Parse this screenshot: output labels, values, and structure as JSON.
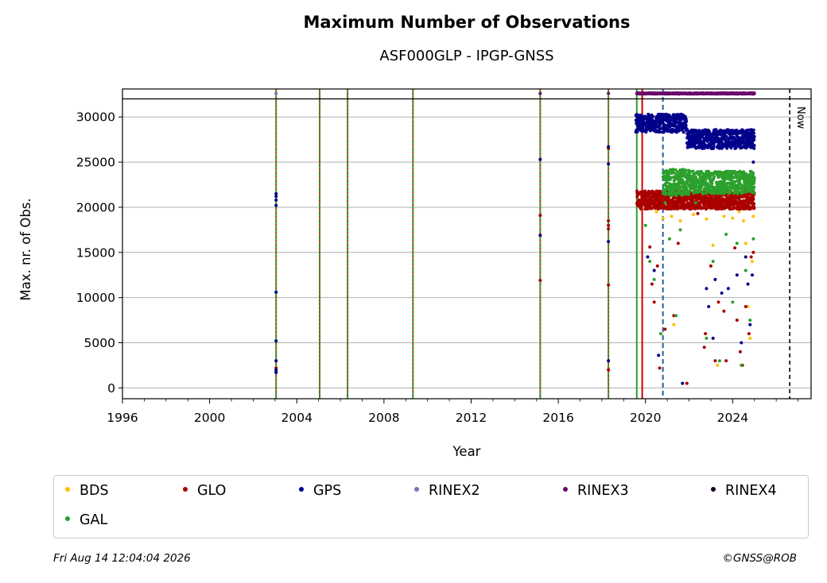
{
  "chart_data": {
    "type": "scatter",
    "title": "Maximum Number of Observations",
    "subtitle": "ASF000GLP - IPGP-GNSS",
    "xlabel": "Year",
    "ylabel": "Max. nr. of Obs.",
    "xlim": [
      1996,
      2027.6
    ],
    "ylim": [
      -1200,
      33100
    ],
    "x_ticks": [
      1996,
      2000,
      2004,
      2008,
      2012,
      2016,
      2020,
      2024
    ],
    "x_tick_labels": [
      "1996",
      "2000",
      "2004",
      "2008",
      "2012",
      "2016",
      "2020",
      "2024"
    ],
    "y_ticks": [
      0,
      5000,
      10000,
      15000,
      20000,
      25000,
      30000
    ],
    "y_tick_labels": [
      "0",
      "5000",
      "10000",
      "15000",
      "20000",
      "25000",
      "30000"
    ],
    "grid": "horizontal",
    "legend_placement": "below plot",
    "reference_line_y": 32000,
    "now_line": {
      "x": 2026.62,
      "label": "Now",
      "color": "#000000"
    },
    "vertical_markers": [
      {
        "x": 2003.05,
        "color": "#2ca02c",
        "style": "solid"
      },
      {
        "x": 2003.05,
        "color": "#d62728",
        "style": "dotted"
      },
      {
        "x": 2005.05,
        "color": "#2ca02c",
        "style": "solid"
      },
      {
        "x": 2005.05,
        "color": "#d62728",
        "style": "dotted"
      },
      {
        "x": 2006.33,
        "color": "#2ca02c",
        "style": "solid"
      },
      {
        "x": 2006.33,
        "color": "#d62728",
        "style": "dotted"
      },
      {
        "x": 2009.33,
        "color": "#2ca02c",
        "style": "solid"
      },
      {
        "x": 2009.33,
        "color": "#d62728",
        "style": "dotted"
      },
      {
        "x": 2015.17,
        "color": "#2ca02c",
        "style": "solid"
      },
      {
        "x": 2015.17,
        "color": "#d62728",
        "style": "dotted"
      },
      {
        "x": 2018.3,
        "color": "#2ca02c",
        "style": "solid"
      },
      {
        "x": 2018.3,
        "color": "#d62728",
        "style": "dotted"
      },
      {
        "x": 2019.6,
        "color": "#2ca02c",
        "style": "solid"
      },
      {
        "x": 2019.85,
        "color": "#cc0000",
        "style": "solid"
      },
      {
        "x": 2020.8,
        "color": "#1f5fa8",
        "style": "dashed"
      }
    ],
    "series": [
      {
        "name": "BDS",
        "color": "#ffbf00",
        "points": [
          [
            2020.5,
            19500
          ],
          [
            2020.8,
            18800
          ],
          [
            2021.2,
            19000
          ],
          [
            2021.3,
            7000
          ],
          [
            2021.6,
            18500
          ],
          [
            2022.2,
            19200
          ],
          [
            2022.8,
            18700
          ],
          [
            2023.1,
            15800
          ],
          [
            2023.3,
            2500
          ],
          [
            2023.6,
            19000
          ],
          [
            2024.0,
            18800
          ],
          [
            2024.3,
            19500
          ],
          [
            2024.5,
            18500
          ],
          [
            2024.6,
            16000
          ],
          [
            2024.7,
            9000
          ],
          [
            2024.8,
            5500
          ],
          [
            2024.9,
            14000
          ],
          [
            2024.95,
            19000
          ]
        ],
        "ranges": []
      },
      {
        "name": "GLO",
        "color": "#aa0000",
        "points": [
          [
            2003.05,
            1800
          ],
          [
            2003.05,
            2200
          ],
          [
            2015.17,
            19100
          ],
          [
            2015.17,
            11900
          ],
          [
            2018.3,
            2000
          ],
          [
            2018.3,
            11400
          ],
          [
            2018.3,
            17600
          ],
          [
            2018.3,
            18000
          ],
          [
            2018.3,
            18500
          ],
          [
            2018.3,
            26500
          ],
          [
            2020.2,
            15600
          ],
          [
            2020.3,
            11500
          ],
          [
            2020.4,
            9500
          ],
          [
            2020.55,
            13500
          ],
          [
            2020.65,
            2200
          ],
          [
            2020.9,
            6500
          ],
          [
            2021.1,
            20500
          ],
          [
            2021.3,
            8000
          ],
          [
            2021.5,
            16000
          ],
          [
            2021.9,
            500
          ],
          [
            2022.4,
            19300
          ],
          [
            2022.7,
            4500
          ],
          [
            2022.75,
            6000
          ],
          [
            2023.0,
            13500
          ],
          [
            2023.2,
            3000
          ],
          [
            2023.35,
            9500
          ],
          [
            2023.6,
            8500
          ],
          [
            2023.7,
            3000
          ],
          [
            2024.1,
            15500
          ],
          [
            2024.2,
            7500
          ],
          [
            2024.35,
            4000
          ],
          [
            2024.45,
            2500
          ],
          [
            2024.6,
            9000
          ],
          [
            2024.75,
            6000
          ],
          [
            2024.85,
            14500
          ],
          [
            2024.95,
            15000
          ]
        ],
        "ranges": [
          [
            2019.6,
            2025.0,
            19800,
            21800
          ]
        ]
      },
      {
        "name": "GPS",
        "color": "#00008b",
        "points": [
          [
            2003.05,
            21500
          ],
          [
            2003.05,
            21200
          ],
          [
            2003.05,
            20800
          ],
          [
            2003.05,
            20200
          ],
          [
            2003.05,
            10600
          ],
          [
            2003.05,
            5200
          ],
          [
            2003.05,
            3000
          ],
          [
            2003.05,
            2000
          ],
          [
            2003.05,
            1700
          ],
          [
            2015.17,
            25300
          ],
          [
            2015.17,
            16900
          ],
          [
            2018.3,
            26700
          ],
          [
            2018.3,
            24800
          ],
          [
            2018.3,
            16200
          ],
          [
            2018.3,
            3000
          ],
          [
            2020.1,
            14500
          ],
          [
            2020.4,
            13000
          ],
          [
            2020.6,
            3600
          ],
          [
            2020.9,
            22500
          ],
          [
            2021.2,
            22000
          ],
          [
            2021.7,
            500
          ],
          [
            2022.8,
            11000
          ],
          [
            2022.9,
            9000
          ],
          [
            2023.1,
            5500
          ],
          [
            2023.2,
            12000
          ],
          [
            2023.5,
            10500
          ],
          [
            2023.8,
            11000
          ],
          [
            2024.2,
            12500
          ],
          [
            2024.4,
            5000
          ],
          [
            2024.6,
            14500
          ],
          [
            2024.7,
            11500
          ],
          [
            2024.8,
            7000
          ],
          [
            2024.9,
            12500
          ],
          [
            2024.95,
            25000
          ]
        ],
        "ranges": [
          [
            2019.55,
            2021.9,
            28300,
            30300
          ],
          [
            2021.9,
            2025.0,
            26500,
            28600
          ]
        ]
      },
      {
        "name": "RINEX2",
        "color": "#7f70bd",
        "points": [
          [
            2003.05,
            32600
          ]
        ],
        "ranges": []
      },
      {
        "name": "RINEX3",
        "color": "#6b0a6b",
        "points": [
          [
            2015.17,
            32600
          ],
          [
            2018.3,
            32600
          ]
        ],
        "ranges": [
          [
            2019.6,
            2025.0,
            32550,
            32650
          ]
        ]
      },
      {
        "name": "RINEX4",
        "color": "#1a0020",
        "points": [],
        "ranges": []
      },
      {
        "name": "GAL",
        "color": "#2ca02c",
        "points": [
          [
            2020.0,
            18000
          ],
          [
            2020.2,
            14000
          ],
          [
            2020.4,
            12000
          ],
          [
            2020.7,
            6000
          ],
          [
            2020.9,
            20500
          ],
          [
            2021.1,
            16500
          ],
          [
            2021.4,
            8000
          ],
          [
            2021.6,
            17500
          ],
          [
            2022.3,
            20500
          ],
          [
            2022.8,
            5500
          ],
          [
            2023.1,
            14000
          ],
          [
            2023.4,
            3000
          ],
          [
            2023.7,
            17000
          ],
          [
            2024.0,
            9500
          ],
          [
            2024.2,
            16000
          ],
          [
            2024.4,
            2500
          ],
          [
            2024.6,
            13000
          ],
          [
            2024.8,
            7500
          ],
          [
            2024.95,
            16500
          ]
        ],
        "ranges": [
          [
            2020.8,
            2022.0,
            21300,
            24200
          ],
          [
            2022.0,
            2025.0,
            21500,
            24000
          ]
        ]
      }
    ]
  },
  "legend": {
    "entries": [
      {
        "label": "BDS",
        "color": "#ffbf00"
      },
      {
        "label": "GLO",
        "color": "#aa0000"
      },
      {
        "label": "GPS",
        "color": "#00008b"
      },
      {
        "label": "RINEX2",
        "color": "#7f70bd"
      },
      {
        "label": "RINEX3",
        "color": "#6b0a6b"
      },
      {
        "label": "RINEX4",
        "color": "#1a0020"
      },
      {
        "label": "GAL",
        "color": "#2ca02c"
      }
    ]
  },
  "footer": {
    "timestamp": "Fri Aug 14 12:04:04 2026",
    "copyright": "©GNSS@ROB"
  }
}
